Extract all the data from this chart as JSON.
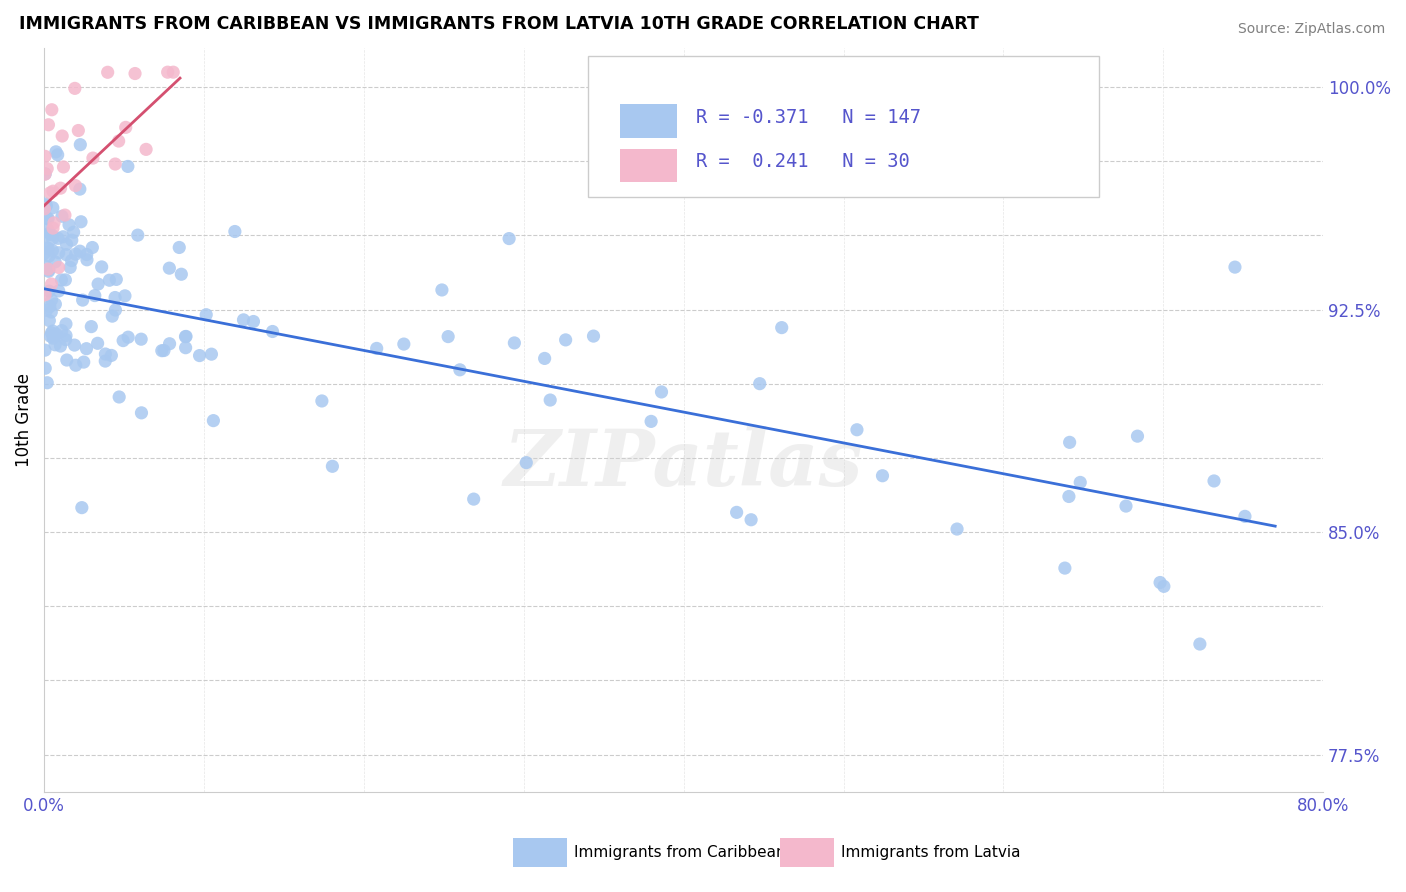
{
  "title": "IMMIGRANTS FROM CARIBBEAN VS IMMIGRANTS FROM LATVIA 10TH GRADE CORRELATION CHART",
  "source": "Source: ZipAtlas.com",
  "ylabel": "10th Grade",
  "x_min": 0.0,
  "x_max": 0.8,
  "y_min": 0.7625,
  "y_max": 1.013,
  "blue_color": "#a8c8f0",
  "pink_color": "#f4b8cc",
  "blue_line_color": "#3a6fd8",
  "pink_line_color": "#d45070",
  "tick_color": "#5555cc",
  "R_blue": -0.371,
  "N_blue": 147,
  "R_pink": 0.241,
  "N_pink": 30,
  "legend_label_blue": "Immigrants from Caribbean",
  "legend_label_pink": "Immigrants from Latvia",
  "watermark": "ZIPatlas",
  "y_tick_positions": [
    0.775,
    0.8,
    0.825,
    0.85,
    0.875,
    0.9,
    0.925,
    0.95,
    0.975,
    1.0
  ],
  "y_tick_labels": [
    "77.5%",
    "",
    "",
    "85.0%",
    "",
    "",
    "92.5%",
    "",
    "",
    "100.0%"
  ],
  "x_tick_positions": [
    0.0,
    0.1,
    0.2,
    0.3,
    0.4,
    0.5,
    0.6,
    0.7,
    0.8
  ],
  "blue_line_x0": 0.0,
  "blue_line_y0": 0.932,
  "blue_line_x1": 0.77,
  "blue_line_y1": 0.852,
  "pink_line_x0": 0.0,
  "pink_line_y0": 0.96,
  "pink_line_x1": 0.085,
  "pink_line_y1": 1.003
}
